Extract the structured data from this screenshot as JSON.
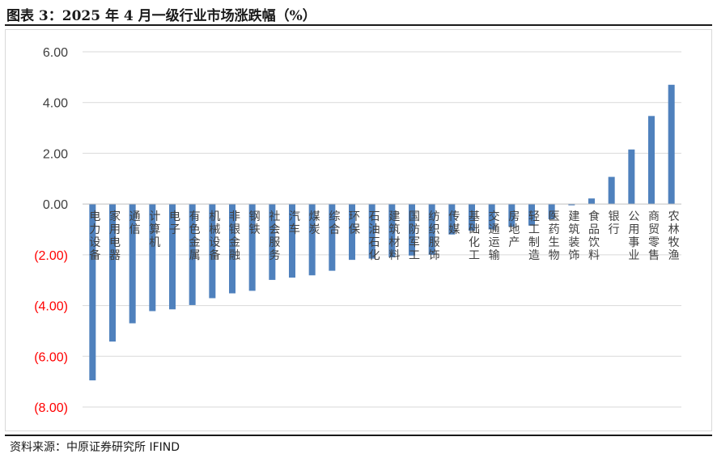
{
  "title": "图表 3：2025 年 4 月一级行业市场涨跌幅（%）",
  "source": "资料来源：中原证券研究所   IFIND",
  "colors": {
    "bar": "#4f81bd",
    "negative_tick": "#ff0000",
    "positive_tick": "#404040",
    "grid": "#d9d9d9"
  },
  "chart_data": {
    "type": "bar",
    "title": "图表 3：2025 年 4 月一级行业市场涨跌幅（%）",
    "xlabel": "",
    "ylabel": "",
    "ylim": [
      -8,
      6
    ],
    "yticks": [
      6,
      4,
      2,
      0,
      -2,
      -4,
      -6,
      -8
    ],
    "ytick_labels": [
      "6.00",
      "4.00",
      "2.00",
      "0.00",
      "(2.00)",
      "(4.00)",
      "(6.00)",
      "(8.00)"
    ],
    "grid": true,
    "legend": "none",
    "categories": [
      "电力设备",
      "家用电器",
      "通信",
      "计算机",
      "电子",
      "有色金属",
      "机械设备",
      "非银金融",
      "钢铁",
      "社会服务",
      "汽车",
      "煤炭",
      "综合",
      "环保",
      "石油石化",
      "建筑材料",
      "国防军工",
      "纺织服饰",
      "传媒",
      "基础化工",
      "交通运输",
      "房地产",
      "轻工制造",
      "医药生物",
      "建筑装饰",
      "食品饮料",
      "银行",
      "公用事业",
      "商贸零售",
      "农林牧渔"
    ],
    "values": [
      -6.95,
      -5.42,
      -4.7,
      -4.22,
      -4.15,
      -3.98,
      -3.71,
      -3.52,
      -3.42,
      -2.99,
      -2.9,
      -2.81,
      -2.63,
      -2.2,
      -2.15,
      -2.1,
      -2.03,
      -2.0,
      -1.2,
      -1.05,
      -1.0,
      -0.9,
      -0.85,
      -0.6,
      -0.05,
      0.22,
      1.07,
      2.15,
      3.47,
      4.7
    ]
  }
}
